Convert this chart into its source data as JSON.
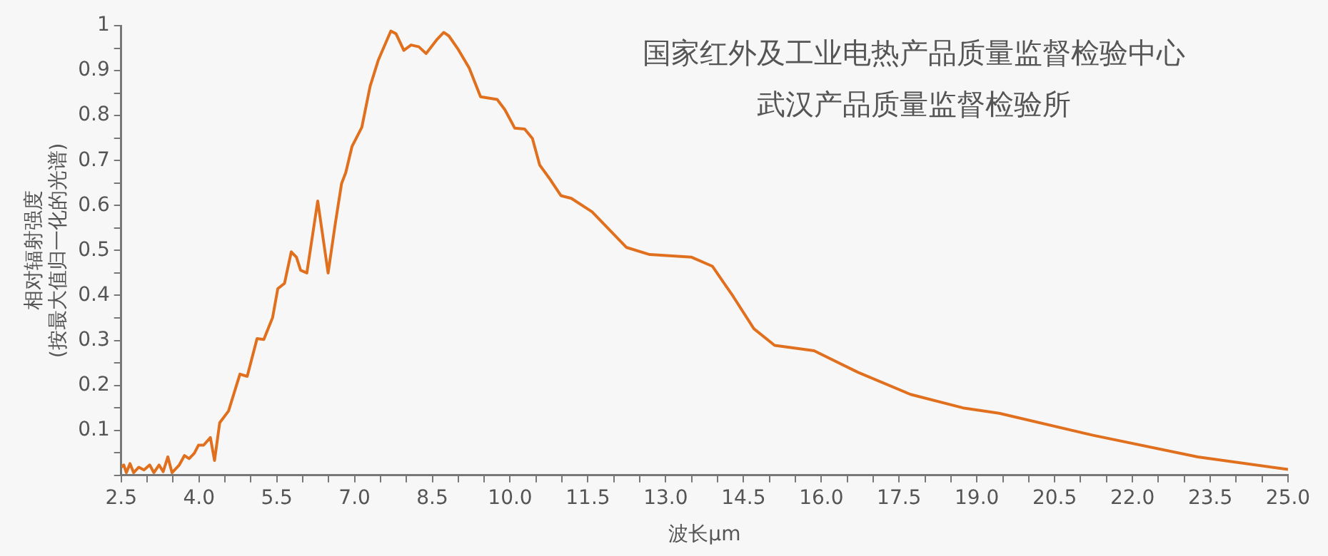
{
  "chart_data": {
    "type": "line",
    "title": "国家红外及工业电热产品质量监督检验中心",
    "subtitle": "武汉产品质量监督检验所",
    "xlabel": "波长μm",
    "ylabel": "相对辐射强度\n(按最大值归一化的光谱)",
    "x": [
      2.5,
      2.55,
      2.6,
      2.67,
      2.74,
      2.84,
      2.94,
      3.05,
      3.13,
      3.23,
      3.31,
      3.4,
      3.48,
      3.62,
      3.72,
      3.81,
      3.91,
      3.99,
      4.09,
      4.22,
      4.3,
      4.4,
      4.57,
      4.79,
      4.93,
      5.12,
      5.25,
      5.42,
      5.52,
      5.65,
      5.78,
      5.88,
      5.96,
      6.08,
      6.29,
      6.49,
      6.63,
      6.75,
      6.83,
      6.95,
      7.14,
      7.3,
      7.46,
      7.7,
      7.8,
      7.95,
      8.09,
      8.24,
      8.38,
      8.58,
      8.72,
      8.82,
      9.0,
      9.21,
      9.43,
      9.75,
      9.9,
      10.09,
      10.28,
      10.43,
      10.57,
      10.76,
      10.98,
      11.18,
      11.58,
      12.24,
      12.69,
      13.5,
      13.9,
      14.3,
      14.7,
      15.1,
      15.86,
      16.71,
      17.72,
      18.73,
      19.43,
      21.24,
      23.26,
      25.0
    ],
    "series": [
      {
        "color": "#e0701e",
        "values": [
          0.018,
          0.023,
          0.006,
          0.026,
          0.006,
          0.018,
          0.012,
          0.023,
          0.006,
          0.023,
          0.008,
          0.041,
          0.006,
          0.023,
          0.044,
          0.037,
          0.049,
          0.067,
          0.067,
          0.084,
          0.033,
          0.117,
          0.143,
          0.225,
          0.22,
          0.304,
          0.302,
          0.351,
          0.415,
          0.427,
          0.497,
          0.485,
          0.456,
          0.45,
          0.61,
          0.45,
          0.561,
          0.649,
          0.673,
          0.731,
          0.774,
          0.865,
          0.924,
          0.988,
          0.982,
          0.945,
          0.957,
          0.953,
          0.938,
          0.968,
          0.985,
          0.977,
          0.947,
          0.906,
          0.842,
          0.836,
          0.813,
          0.772,
          0.77,
          0.749,
          0.69,
          0.66,
          0.622,
          0.616,
          0.586,
          0.507,
          0.491,
          0.485,
          0.465,
          0.398,
          0.326,
          0.289,
          0.277,
          0.229,
          0.18,
          0.15,
          0.138,
          0.089,
          0.041,
          0.013
        ]
      }
    ],
    "xlim": [
      2.5,
      25.0
    ],
    "xticks": [
      {
        "value": 2.5,
        "label": "2.5"
      },
      {
        "value": 3,
        "label": null
      },
      {
        "value": 3.5,
        "label": null
      },
      {
        "value": 4,
        "label": "4.0"
      },
      {
        "value": 4.5,
        "label": null
      },
      {
        "value": 5,
        "label": null
      },
      {
        "value": 5.5,
        "label": "5.5"
      },
      {
        "value": 6,
        "label": null
      },
      {
        "value": 6.5,
        "label": null
      },
      {
        "value": 7,
        "label": "7.0"
      },
      {
        "value": 7.5,
        "label": null
      },
      {
        "value": 8,
        "label": null
      },
      {
        "value": 8.5,
        "label": "8.5"
      },
      {
        "value": 9,
        "label": null
      },
      {
        "value": 9.5,
        "label": null
      },
      {
        "value": 10,
        "label": "10.0"
      },
      {
        "value": 10.5,
        "label": null
      },
      {
        "value": 11,
        "label": null
      },
      {
        "value": 11.5,
        "label": "11.5"
      },
      {
        "value": 12,
        "label": null
      },
      {
        "value": 12.5,
        "label": null
      },
      {
        "value": 13,
        "label": "13.0"
      },
      {
        "value": 13.5,
        "label": null
      },
      {
        "value": 14,
        "label": null
      },
      {
        "value": 14.5,
        "label": "14.5"
      },
      {
        "value": 15,
        "label": null
      },
      {
        "value": 15.5,
        "label": null
      },
      {
        "value": 16,
        "label": "16.0"
      },
      {
        "value": 16.5,
        "label": null
      },
      {
        "value": 17,
        "label": null
      },
      {
        "value": 17.5,
        "label": "17.5"
      },
      {
        "value": 18,
        "label": null
      },
      {
        "value": 18.5,
        "label": null
      },
      {
        "value": 19,
        "label": "19.0"
      },
      {
        "value": 19.5,
        "label": null
      },
      {
        "value": 20,
        "label": null
      },
      {
        "value": 20.5,
        "label": "20.5"
      },
      {
        "value": 21,
        "label": null
      },
      {
        "value": 21.5,
        "label": null
      },
      {
        "value": 22,
        "label": "22.0"
      },
      {
        "value": 22.5,
        "label": null
      },
      {
        "value": 23,
        "label": null
      },
      {
        "value": 23.5,
        "label": "23.5"
      },
      {
        "value": 24,
        "label": null
      },
      {
        "value": 24.5,
        "label": null
      },
      {
        "value": 25,
        "label": "25.0"
      }
    ],
    "ylim": [
      0,
      1
    ],
    "yticks": [
      {
        "value": 0,
        "label": null
      },
      {
        "value": 0.05,
        "label": null
      },
      0.1,
      {
        "value": 0.15,
        "label": null
      },
      0.2,
      {
        "value": 0.25,
        "label": null
      },
      0.3,
      {
        "value": 0.35,
        "label": null
      },
      0.4,
      {
        "value": 0.45,
        "label": null
      },
      0.5,
      {
        "value": 0.55,
        "label": null
      },
      0.6,
      {
        "value": 0.65,
        "label": null
      },
      0.7,
      {
        "value": 0.75,
        "label": null
      },
      0.8,
      {
        "value": 0.85,
        "label": null
      },
      0.9,
      {
        "value": 0.95,
        "label": null
      },
      1
    ],
    "grid": false,
    "legend": false
  }
}
